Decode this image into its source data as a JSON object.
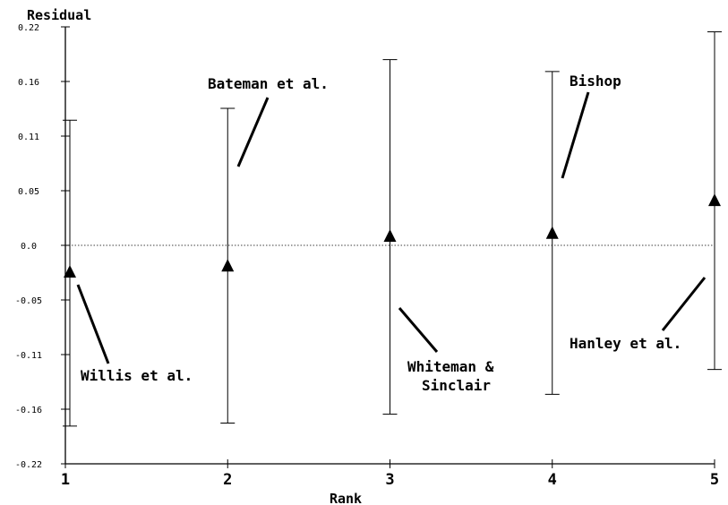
{
  "chart_data": {
    "type": "scatter",
    "title": "",
    "xlabel": "Rank",
    "ylabel": "Residual",
    "xlim": [
      1,
      5
    ],
    "ylim": [
      -0.22,
      0.22
    ],
    "x_ticks": [
      "1",
      "2",
      "3",
      "4",
      "5"
    ],
    "y_ticks": [
      "0.22",
      "0.16",
      "0.11",
      "0.05",
      "0.0",
      "-0.05",
      "-0.11",
      "-0.16",
      "-0.22"
    ],
    "reference_line_y": 0.0,
    "grid": false,
    "points": [
      {
        "x": 1,
        "y": -0.027,
        "lower": -0.182,
        "upper": 0.126
      },
      {
        "x": 2,
        "y": -0.021,
        "lower": -0.179,
        "upper": 0.138
      },
      {
        "x": 3,
        "y": 0.009,
        "lower": -0.17,
        "upper": 0.187
      },
      {
        "x": 4,
        "y": 0.012,
        "lower": -0.15,
        "upper": 0.175
      },
      {
        "x": 5,
        "y": 0.045,
        "lower": -0.125,
        "upper": 0.215
      }
    ],
    "annotations": [
      {
        "x": 1,
        "lines": [
          "Willis et al."
        ]
      },
      {
        "x": 2,
        "lines": [
          "Bateman et al."
        ]
      },
      {
        "x": 3,
        "lines": [
          "Whiteman &",
          "Sinclair"
        ]
      },
      {
        "x": 4,
        "lines": [
          "Bishop"
        ]
      },
      {
        "x": 5,
        "lines": [
          "Hanley et al."
        ]
      }
    ]
  }
}
